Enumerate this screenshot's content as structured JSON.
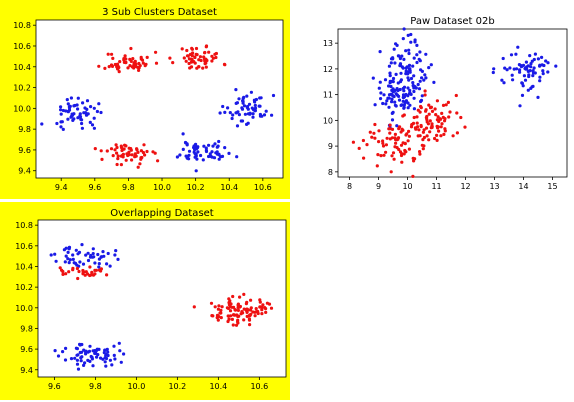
{
  "chart_data": [
    {
      "id": "sub_clusters",
      "type": "scatter",
      "title": "3 Sub Clusters Dataset",
      "xlabel": "",
      "ylabel": "",
      "xlim": [
        9.25,
        10.72
      ],
      "ylim": [
        9.33,
        10.85
      ],
      "xticks": [
        9.4,
        9.6,
        9.8,
        10.0,
        10.2,
        10.4,
        10.6
      ],
      "yticks": [
        9.4,
        9.6,
        9.8,
        10.0,
        10.2,
        10.4,
        10.6,
        10.8
      ],
      "grid": false,
      "colors": {
        "red": "#ee1111",
        "blue": "#1a1ae6"
      },
      "clusters": [
        {
          "color": "red",
          "cx": 9.8,
          "cy": 10.44,
          "sx": 0.07,
          "sy": 0.05,
          "n": 55
        },
        {
          "color": "red",
          "cx": 10.22,
          "cy": 10.48,
          "sx": 0.07,
          "sy": 0.06,
          "n": 55
        },
        {
          "color": "red",
          "cx": 9.8,
          "cy": 9.56,
          "sx": 0.07,
          "sy": 0.06,
          "n": 55
        },
        {
          "color": "blue",
          "cx": 9.5,
          "cy": 9.97,
          "sx": 0.08,
          "sy": 0.07,
          "n": 60
        },
        {
          "color": "blue",
          "cx": 10.5,
          "cy": 10.0,
          "sx": 0.07,
          "sy": 0.07,
          "n": 60
        },
        {
          "color": "blue",
          "cx": 10.25,
          "cy": 9.58,
          "sx": 0.07,
          "sy": 0.06,
          "n": 60
        }
      ]
    },
    {
      "id": "paw",
      "type": "scatter",
      "title": "Paw Dataset 02b",
      "xlabel": "",
      "ylabel": "",
      "xlim": [
        7.6,
        15.5
      ],
      "ylim": [
        7.8,
        13.55
      ],
      "xticks": [
        8,
        9,
        10,
        11,
        12,
        13,
        14,
        15
      ],
      "yticks": [
        8,
        9,
        10,
        11,
        12,
        13
      ],
      "grid": false,
      "colors": {
        "red": "#ee1111",
        "blue": "#1a1ae6"
      },
      "clusters": [
        {
          "color": "blue",
          "cx": 9.9,
          "cy": 11.8,
          "sx": 0.4,
          "sy": 0.6,
          "n": 110
        },
        {
          "color": "blue",
          "cx": 9.6,
          "cy": 10.8,
          "sx": 0.35,
          "sy": 0.4,
          "n": 50
        },
        {
          "color": "blue",
          "cx": 14.1,
          "cy": 11.9,
          "sx": 0.45,
          "sy": 0.45,
          "n": 70
        },
        {
          "color": "red",
          "cx": 9.6,
          "cy": 9.2,
          "sx": 0.5,
          "sy": 0.5,
          "n": 80
        },
        {
          "color": "red",
          "cx": 10.8,
          "cy": 9.9,
          "sx": 0.5,
          "sy": 0.45,
          "n": 80
        }
      ]
    },
    {
      "id": "overlapping",
      "type": "scatter",
      "title": "Overlapping Dataset",
      "xlabel": "",
      "ylabel": "",
      "xlim": [
        9.52,
        10.73
      ],
      "ylim": [
        9.33,
        10.85
      ],
      "xticks": [
        9.6,
        9.8,
        10.0,
        10.2,
        10.4,
        10.6
      ],
      "yticks": [
        9.4,
        9.6,
        9.8,
        10.0,
        10.2,
        10.4,
        10.6,
        10.8
      ],
      "grid": false,
      "colors": {
        "red": "#ee1111",
        "blue": "#1a1ae6"
      },
      "clusters": [
        {
          "color": "blue",
          "cx": 9.75,
          "cy": 10.49,
          "sx": 0.07,
          "sy": 0.05,
          "n": 50
        },
        {
          "color": "red",
          "cx": 9.75,
          "cy": 10.35,
          "sx": 0.07,
          "sy": 0.03,
          "n": 30
        },
        {
          "color": "blue",
          "cx": 9.77,
          "cy": 9.55,
          "sx": 0.07,
          "sy": 0.06,
          "n": 70
        },
        {
          "color": "red",
          "cx": 10.5,
          "cy": 9.98,
          "sx": 0.07,
          "sy": 0.07,
          "n": 100
        }
      ]
    }
  ]
}
